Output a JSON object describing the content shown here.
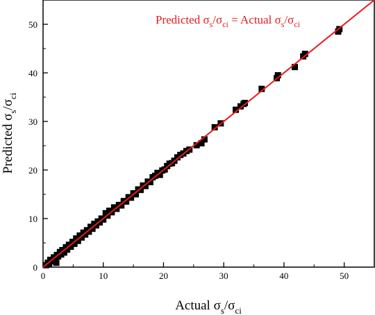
{
  "chart_data": {
    "type": "scatter",
    "xlabel": {
      "main": "Actual σ",
      "sub1": "s",
      "mid": "/σ",
      "sub2": "ci"
    },
    "ylabel": {
      "main": "Predicted σ",
      "sub1": "s",
      "mid": "/σ",
      "sub2": "ci"
    },
    "xlim": [
      0,
      55
    ],
    "ylim": [
      0,
      55
    ],
    "x_ticks": [
      0,
      10,
      20,
      30,
      40,
      50
    ],
    "y_ticks": [
      0,
      10,
      20,
      30,
      40,
      50
    ],
    "x_tick_labels": [
      "0",
      "10",
      "20",
      "30",
      "40",
      "50"
    ],
    "y_tick_labels": [
      "0",
      "10",
      "20",
      "30",
      "40",
      "50"
    ],
    "grid": false,
    "annotation": {
      "parts": [
        "Predicted σ",
        "s",
        "/σ",
        "ci",
        " = Actual σ",
        "s",
        "/σ",
        "ci"
      ],
      "color": "#e8191c"
    },
    "reference_line": {
      "type": "y=x",
      "color": "#e8191c",
      "from": [
        0,
        0
      ],
      "to": [
        55,
        55
      ]
    },
    "marker": {
      "shape": "square",
      "color": "#000000"
    },
    "points": [
      [
        0.5,
        0.4
      ],
      [
        0.8,
        0.9
      ],
      [
        1.0,
        0.7
      ],
      [
        1.2,
        1.5
      ],
      [
        1.5,
        1.2
      ],
      [
        1.8,
        2.0
      ],
      [
        2.0,
        1.3
      ],
      [
        2.2,
        0.9
      ],
      [
        2.3,
        2.5
      ],
      [
        2.5,
        2.2
      ],
      [
        2.8,
        3.1
      ],
      [
        3.0,
        2.6
      ],
      [
        3.2,
        3.5
      ],
      [
        3.5,
        3.0
      ],
      [
        3.8,
        4.1
      ],
      [
        4.0,
        3.6
      ],
      [
        4.3,
        4.6
      ],
      [
        4.6,
        4.2
      ],
      [
        4.9,
        5.2
      ],
      [
        5.2,
        4.8
      ],
      [
        5.5,
        5.9
      ],
      [
        5.8,
        5.4
      ],
      [
        6.1,
        6.5
      ],
      [
        6.4,
        6.1
      ],
      [
        6.7,
        7.1
      ],
      [
        7.0,
        6.7
      ],
      [
        7.3,
        7.6
      ],
      [
        7.6,
        7.3
      ],
      [
        7.9,
        8.3
      ],
      [
        8.2,
        7.9
      ],
      [
        8.5,
        8.9
      ],
      [
        8.8,
        8.6
      ],
      [
        9.1,
        9.4
      ],
      [
        9.4,
        9.2
      ],
      [
        9.7,
        10.0
      ],
      [
        10.0,
        9.8
      ],
      [
        10.4,
        11.1
      ],
      [
        10.7,
        10.6
      ],
      [
        11.0,
        11.6
      ],
      [
        11.4,
        11.3
      ],
      [
        11.8,
        12.3
      ],
      [
        12.2,
        12.0
      ],
      [
        12.6,
        12.8
      ],
      [
        13.0,
        12.7
      ],
      [
        13.4,
        13.6
      ],
      [
        13.8,
        13.5
      ],
      [
        14.2,
        14.4
      ],
      [
        14.6,
        14.3
      ],
      [
        15.0,
        15.2
      ],
      [
        15.4,
        15.0
      ],
      [
        15.8,
        16.0
      ],
      [
        16.2,
        15.9
      ],
      [
        16.6,
        16.8
      ],
      [
        17.0,
        16.7
      ],
      [
        17.4,
        17.6
      ],
      [
        17.8,
        17.5
      ],
      [
        18.2,
        18.5
      ],
      [
        18.6,
        18.8
      ],
      [
        19.0,
        19.4
      ],
      [
        19.4,
        19.0
      ],
      [
        19.8,
        19.9
      ],
      [
        20.2,
        20.1
      ],
      [
        20.6,
        20.8
      ],
      [
        21.0,
        21.3
      ],
      [
        21.4,
        21.4
      ],
      [
        21.8,
        21.9
      ],
      [
        22.3,
        22.6
      ],
      [
        22.8,
        23.1
      ],
      [
        23.3,
        23.4
      ],
      [
        23.8,
        23.9
      ],
      [
        24.3,
        24.2
      ],
      [
        25.5,
        25.1
      ],
      [
        26.3,
        25.5
      ],
      [
        26.8,
        26.3
      ],
      [
        28.5,
        28.8
      ],
      [
        29.5,
        29.6
      ],
      [
        32.0,
        32.4
      ],
      [
        32.8,
        33.1
      ],
      [
        33.3,
        33.6
      ],
      [
        33.5,
        33.8
      ],
      [
        36.3,
        36.7
      ],
      [
        38.8,
        38.9
      ],
      [
        39.0,
        39.5
      ],
      [
        41.8,
        41.2
      ],
      [
        43.2,
        43.4
      ],
      [
        43.5,
        43.9
      ],
      [
        49.0,
        48.5
      ],
      [
        49.2,
        49.0
      ]
    ]
  }
}
